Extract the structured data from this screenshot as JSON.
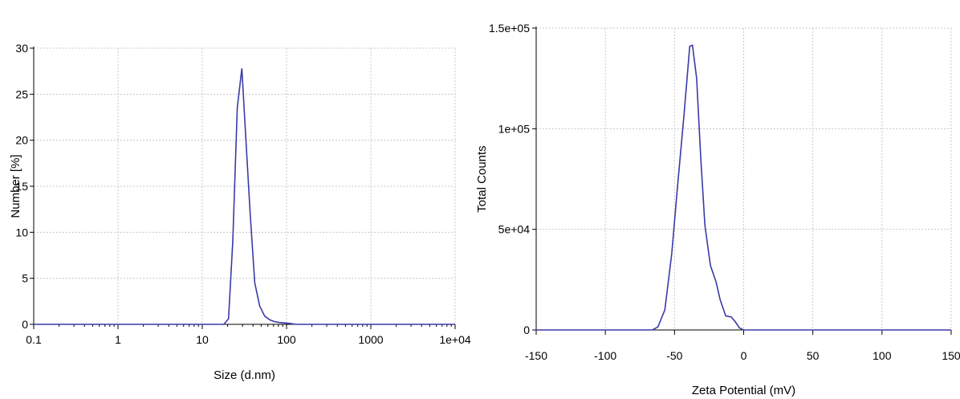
{
  "chart_data": [
    {
      "type": "line",
      "title": "",
      "xlabel": "Size (d.nm)",
      "ylabel": "Number [%]",
      "xscale": "log",
      "xlim": [
        0.1,
        10000
      ],
      "ylim": [
        0,
        30
      ],
      "xticks": [
        0.1,
        1,
        10,
        100,
        1000,
        10000
      ],
      "xtick_labels": [
        "0.1",
        "1",
        "10",
        "100",
        "1000",
        "1e+04"
      ],
      "yticks": [
        0,
        5,
        10,
        15,
        20,
        25,
        30
      ],
      "ytick_labels": [
        "0",
        "5",
        "10",
        "15",
        "20",
        "25",
        "30"
      ],
      "grid": true,
      "line_color": "#3a3aa8",
      "series": [
        {
          "x": [
            0.1,
            18,
            20.5,
            23,
            26,
            29.5,
            33,
            37,
            42,
            48,
            55,
            63,
            72,
            82,
            95,
            110,
            130,
            10000
          ],
          "y": [
            0,
            0,
            0.6,
            9,
            23.5,
            27.8,
            20,
            12,
            4.5,
            2,
            0.9,
            0.5,
            0.3,
            0.2,
            0.15,
            0.1,
            0,
            0
          ]
        }
      ]
    },
    {
      "type": "line",
      "title": "",
      "xlabel": "Zeta Potential (mV)",
      "ylabel": "Total Counts",
      "xlim": [
        -150,
        150
      ],
      "ylim": [
        0,
        150000
      ],
      "xticks": [
        -150,
        -100,
        -50,
        0,
        50,
        100,
        150
      ],
      "xtick_labels": [
        "-150",
        "-100",
        "-50",
        "0",
        "50",
        "100",
        "150"
      ],
      "yticks": [
        0,
        50000,
        100000,
        150000
      ],
      "ytick_labels": [
        "0",
        "5e+04",
        "1e+05",
        "1.5e+05"
      ],
      "grid": true,
      "line_color": "#3a3aa8",
      "series": [
        {
          "x": [
            -150,
            -66,
            -62,
            -57,
            -52,
            -48,
            -43,
            -39,
            -37,
            -34,
            -31,
            -28,
            -24,
            -20,
            -17,
            -13,
            -9,
            -6,
            -3,
            0,
            150
          ],
          "y": [
            0,
            0,
            1500,
            10000,
            38000,
            70000,
            108000,
            141000,
            141500,
            125000,
            85000,
            52000,
            32000,
            24000,
            15000,
            7000,
            6500,
            4000,
            1000,
            0,
            0
          ]
        }
      ]
    }
  ]
}
